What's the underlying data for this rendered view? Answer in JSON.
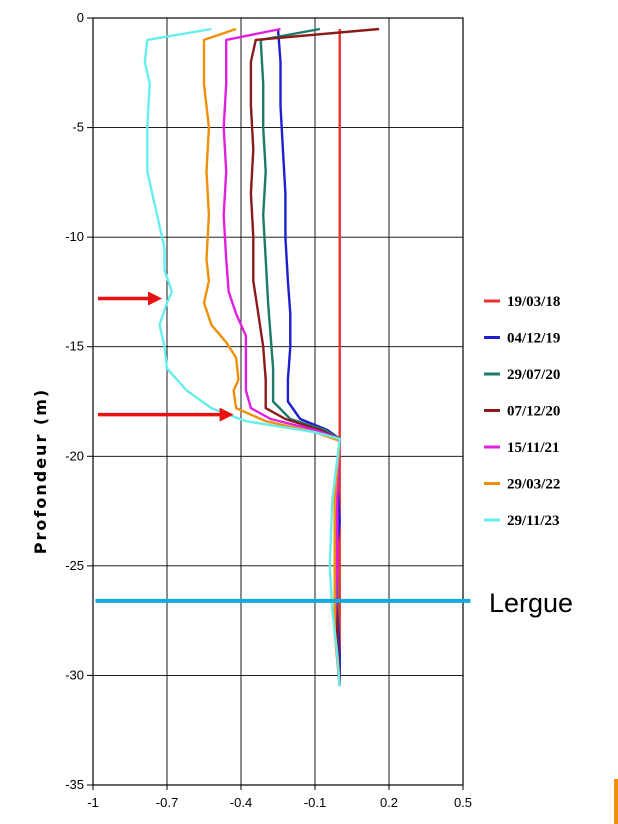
{
  "chart_data": {
    "type": "line",
    "title": "",
    "xlabel": "",
    "ylabel": "Profondeur (m)",
    "xlim": [
      -1,
      0.5
    ],
    "ylim": [
      -35,
      0
    ],
    "x_ticks": [
      -1,
      -0.7,
      -0.4,
      -0.1,
      0.2,
      0.5
    ],
    "x_tick_labels": [
      "-1",
      "-0.7",
      "-0.4",
      "-0.1",
      "0.2",
      "0.5"
    ],
    "y_ticks": [
      0,
      -5,
      -10,
      -15,
      -20,
      -25,
      -30,
      -35
    ],
    "y_tick_labels": [
      "0",
      "-5",
      "-10",
      "-15",
      "-20",
      "-25",
      "-30",
      "-35"
    ],
    "grid": true,
    "legend_position": "right",
    "series": [
      {
        "name": "19/03/18",
        "color": "#e8322b",
        "points": [
          [
            0.0,
            -0.5
          ],
          [
            0.0,
            -5
          ],
          [
            0.0,
            -10
          ],
          [
            0.0,
            -15
          ],
          [
            0.0,
            -19
          ],
          [
            0.0,
            -19.2
          ],
          [
            0.0,
            -25
          ],
          [
            0.0,
            -30.5
          ]
        ]
      },
      {
        "name": "04/12/19",
        "color": "#1f1fd0",
        "points": [
          [
            -0.25,
            -0.5
          ],
          [
            -0.24,
            -2
          ],
          [
            -0.24,
            -4
          ],
          [
            -0.23,
            -6
          ],
          [
            -0.22,
            -8
          ],
          [
            -0.22,
            -10
          ],
          [
            -0.21,
            -12
          ],
          [
            -0.2,
            -13.5
          ],
          [
            -0.2,
            -15
          ],
          [
            -0.21,
            -16.5
          ],
          [
            -0.21,
            -17.5
          ],
          [
            -0.16,
            -18.3
          ],
          [
            -0.05,
            -18.8
          ],
          [
            0.0,
            -19.2
          ],
          [
            -0.01,
            -21
          ],
          [
            0.0,
            -23
          ],
          [
            -0.02,
            -25
          ],
          [
            -0.01,
            -27
          ],
          [
            0.0,
            -29
          ],
          [
            0.0,
            -30.5
          ]
        ]
      },
      {
        "name": "29/07/20",
        "color": "#1e7a68",
        "points": [
          [
            -0.08,
            -0.5
          ],
          [
            -0.32,
            -1
          ],
          [
            -0.31,
            -3
          ],
          [
            -0.31,
            -5
          ],
          [
            -0.3,
            -7
          ],
          [
            -0.31,
            -9
          ],
          [
            -0.3,
            -11
          ],
          [
            -0.29,
            -13
          ],
          [
            -0.28,
            -14.5
          ],
          [
            -0.27,
            -16
          ],
          [
            -0.27,
            -17.5
          ],
          [
            -0.2,
            -18.3
          ],
          [
            -0.06,
            -18.8
          ],
          [
            0.0,
            -19.2
          ],
          [
            -0.01,
            -22
          ],
          [
            -0.01,
            -25
          ],
          [
            -0.01,
            -28
          ],
          [
            0.0,
            -30.5
          ]
        ]
      },
      {
        "name": "07/12/20",
        "color": "#8b1a1a",
        "points": [
          [
            0.16,
            -0.5
          ],
          [
            -0.34,
            -1
          ],
          [
            -0.36,
            -2
          ],
          [
            -0.36,
            -4
          ],
          [
            -0.35,
            -6
          ],
          [
            -0.36,
            -8
          ],
          [
            -0.35,
            -10
          ],
          [
            -0.35,
            -12
          ],
          [
            -0.33,
            -13.5
          ],
          [
            -0.31,
            -15
          ],
          [
            -0.3,
            -16.5
          ],
          [
            -0.3,
            -17.8
          ],
          [
            -0.22,
            -18.3
          ],
          [
            -0.08,
            -18.8
          ],
          [
            0.0,
            -19.2
          ],
          [
            -0.01,
            -22
          ],
          [
            -0.02,
            -25
          ],
          [
            -0.01,
            -28
          ],
          [
            0.0,
            -30.5
          ]
        ]
      },
      {
        "name": "15/11/21",
        "color": "#e020e0",
        "points": [
          [
            -0.24,
            -0.5
          ],
          [
            -0.46,
            -1
          ],
          [
            -0.46,
            -3
          ],
          [
            -0.47,
            -5
          ],
          [
            -0.46,
            -7
          ],
          [
            -0.47,
            -9
          ],
          [
            -0.46,
            -11
          ],
          [
            -0.45,
            -12.5
          ],
          [
            -0.42,
            -13.5
          ],
          [
            -0.38,
            -14.5
          ],
          [
            -0.38,
            -16
          ],
          [
            -0.38,
            -17
          ],
          [
            -0.36,
            -17.8
          ],
          [
            -0.28,
            -18.3
          ],
          [
            -0.1,
            -18.8
          ],
          [
            0.0,
            -19.2
          ],
          [
            -0.01,
            -22
          ],
          [
            -0.01,
            -25
          ],
          [
            -0.02,
            -28
          ],
          [
            0.0,
            -30.5
          ]
        ]
      },
      {
        "name": "29/03/22",
        "color": "#f0900a",
        "points": [
          [
            -0.42,
            -0.5
          ],
          [
            -0.55,
            -1
          ],
          [
            -0.55,
            -3
          ],
          [
            -0.53,
            -5
          ],
          [
            -0.54,
            -7
          ],
          [
            -0.53,
            -9
          ],
          [
            -0.54,
            -11
          ],
          [
            -0.53,
            -12
          ],
          [
            -0.55,
            -13
          ],
          [
            -0.52,
            -14
          ],
          [
            -0.46,
            -14.8
          ],
          [
            -0.42,
            -15.5
          ],
          [
            -0.41,
            -16.5
          ],
          [
            -0.43,
            -17
          ],
          [
            -0.42,
            -17.8
          ],
          [
            -0.3,
            -18.4
          ],
          [
            -0.1,
            -18.9
          ],
          [
            0.0,
            -19.3
          ],
          [
            -0.02,
            -22
          ],
          [
            -0.02,
            -25
          ],
          [
            -0.02,
            -28
          ],
          [
            0.0,
            -30.5
          ]
        ]
      },
      {
        "name": "29/11/23",
        "color": "#66eded",
        "points": [
          [
            -0.52,
            -0.5
          ],
          [
            -0.78,
            -1
          ],
          [
            -0.79,
            -2
          ],
          [
            -0.77,
            -3
          ],
          [
            -0.78,
            -5
          ],
          [
            -0.78,
            -7
          ],
          [
            -0.74,
            -9
          ],
          [
            -0.71,
            -10.5
          ],
          [
            -0.71,
            -11.5
          ],
          [
            -0.68,
            -12.5
          ],
          [
            -0.7,
            -13
          ],
          [
            -0.73,
            -14
          ],
          [
            -0.71,
            -15
          ],
          [
            -0.7,
            -16
          ],
          [
            -0.62,
            -17
          ],
          [
            -0.52,
            -17.8
          ],
          [
            -0.38,
            -18.4
          ],
          [
            -0.1,
            -18.9
          ],
          [
            0.0,
            -19.2
          ],
          [
            -0.03,
            -22
          ],
          [
            -0.04,
            -25
          ],
          [
            -0.03,
            -27
          ],
          [
            -0.01,
            -29
          ],
          [
            0.0,
            -30.5
          ]
        ]
      }
    ],
    "annotations": {
      "arrows": [
        {
          "depth": -12.8,
          "x_start": -0.98,
          "x_end": -0.72,
          "color": "#e81010"
        },
        {
          "depth": -18.1,
          "x_start": -0.98,
          "x_end": -0.43,
          "color": "#e81010"
        }
      ],
      "horizontal_line": {
        "depth": -26.6,
        "x_start": -0.99,
        "x_end": 0.53,
        "color": "#12a8e0"
      },
      "label": "Lergue"
    }
  }
}
